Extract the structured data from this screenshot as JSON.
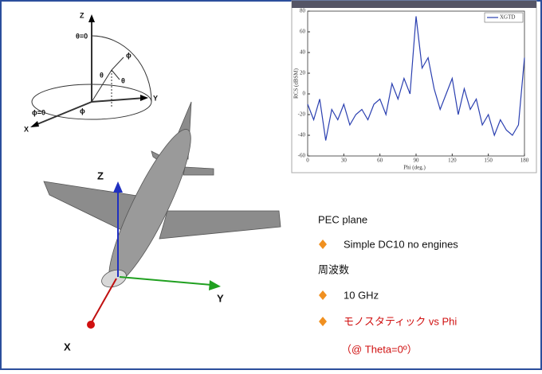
{
  "chart_data": {
    "type": "line",
    "xlabel": "Phi (deg.)",
    "ylabel": "RCS (dBSM)",
    "x": [
      0,
      5,
      10,
      15,
      20,
      25,
      30,
      35,
      40,
      45,
      50,
      55,
      60,
      65,
      70,
      75,
      80,
      85,
      90,
      95,
      100,
      105,
      110,
      115,
      120,
      125,
      130,
      135,
      140,
      145,
      150,
      155,
      160,
      165,
      170,
      175,
      180
    ],
    "series": [
      {
        "name": "XGTD",
        "color": "#2a3fb0",
        "values": [
          -10,
          -25,
          -5,
          -45,
          -15,
          -25,
          -10,
          -30,
          -20,
          -15,
          -25,
          -10,
          -5,
          -20,
          10,
          -5,
          15,
          0,
          75,
          25,
          35,
          5,
          -15,
          0,
          15,
          -20,
          5,
          -15,
          -5,
          -30,
          -20,
          -40,
          -25,
          -35,
          -40,
          -30,
          35
        ]
      }
    ],
    "xlim": [
      0,
      180
    ],
    "xticks": [
      0,
      30,
      60,
      90,
      120,
      150,
      180
    ],
    "ylim": [
      -60,
      80
    ],
    "yticks": [
      -60,
      -40,
      -20,
      0,
      20,
      40,
      60,
      80
    ],
    "legend": "upper-right"
  },
  "diagram": {
    "labels": [
      "Z",
      "θ=0",
      "ϕ",
      "θ",
      "Y",
      "ϕ=0",
      "X",
      "θ",
      "ϕ"
    ]
  },
  "airplane": {
    "axes": [
      "Z",
      "Y",
      "X"
    ]
  },
  "notes": {
    "heading": "PEC plane",
    "item1": "Simple DC10 no engines",
    "heading2": "周波数",
    "item2": "10 GHz",
    "item3": "モノスタティック vs Phi",
    "item3_sub": "（@ Theta=0º）"
  }
}
